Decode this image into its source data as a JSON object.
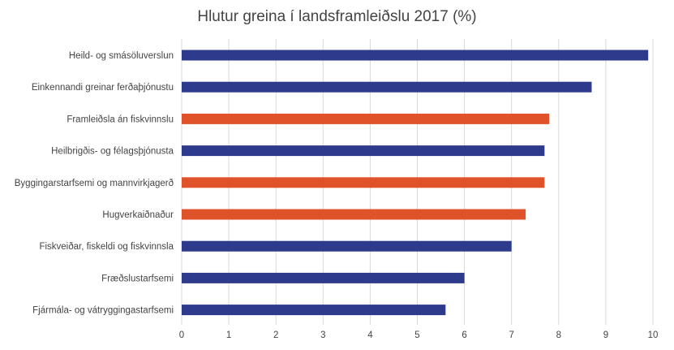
{
  "chart_data": {
    "type": "bar",
    "orientation": "horizontal",
    "title": "Hlutur greina í landsframleiðslu 2017 (%)",
    "xlabel": "",
    "ylabel": "",
    "xlim": [
      0,
      10
    ],
    "xticks": [
      "0",
      "1",
      "2",
      "3",
      "4",
      "5",
      "6",
      "7",
      "8",
      "9",
      "10"
    ],
    "grid": true,
    "legend": "none",
    "categories": [
      "Heild- og smásöluverslun",
      "Einkennandi greinar ferðaþjónustu",
      "Framleiðsla án fiskvinnslu",
      "Heilbrigðis- og félagsþjónusta",
      "Byggingarstarfsemi og mannvirkjagerð",
      "Hugverkaiðnaður",
      "Fiskveiðar, fiskeldi og fiskvinnsla",
      "Fræðslustarfsemi",
      "Fjármála- og vátryggingastarfsemi"
    ],
    "values": [
      9.9,
      8.7,
      7.8,
      7.7,
      7.7,
      7.3,
      7.0,
      6.0,
      5.6
    ],
    "bar_colors": [
      "#2e3b8c",
      "#2e3b8c",
      "#e0532a",
      "#2e3b8c",
      "#e0532a",
      "#e0532a",
      "#2e3b8c",
      "#2e3b8c",
      "#2e3b8c"
    ]
  },
  "colors": {
    "blue": "#2e3b8c",
    "orange": "#e0532a",
    "grid": "#d9d9d9",
    "text": "#444444"
  }
}
